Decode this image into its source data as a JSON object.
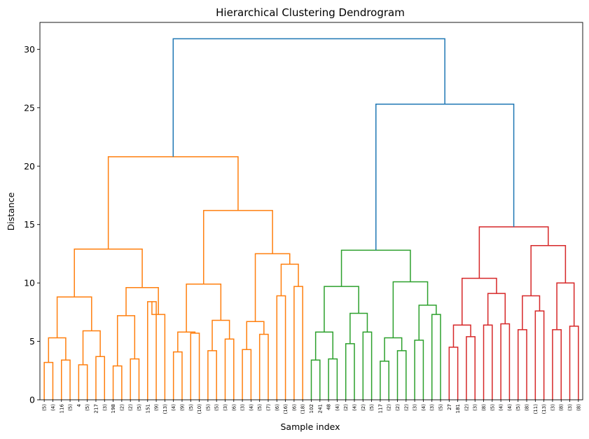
{
  "chart_data": {
    "type": "dendrogram",
    "title": "Hierarchical Clustering Dendrogram",
    "xlabel": "Sample index",
    "ylabel": "Distance",
    "ylim": [
      0,
      32.3
    ],
    "yticks": [
      0,
      5,
      10,
      15,
      20,
      25,
      30
    ],
    "grid": false,
    "colors": {
      "above_threshold": "#1f77b4",
      "cluster_1": "#ff7f0e",
      "cluster_2": "#2ca02c",
      "cluster_3": "#d62728"
    },
    "leaves": [
      "(5)",
      "(4)",
      "116",
      "(5)",
      "4",
      "(5)",
      "217",
      "(3)",
      "198",
      "(2)",
      "(2)",
      "(5)",
      "151",
      "(9)",
      "(13)",
      "(4)",
      "(9)",
      "(5)",
      "(10)",
      "(5)",
      "(5)",
      "(3)",
      "(6)",
      "(3)",
      "(4)",
      "(5)",
      "(7)",
      "(6)",
      "(16)",
      "(6)",
      "(18)",
      "102",
      "241",
      "48",
      "(4)",
      "(2)",
      "(4)",
      "(2)",
      "(5)",
      "117",
      "(2)",
      "(2)",
      "(2)",
      "(3)",
      "(4)",
      "(3)",
      "(5)",
      "27",
      "181",
      "(2)",
      "(3)",
      "(8)",
      "(5)",
      "(4)",
      "(4)",
      "(5)",
      "(8)",
      "(11)",
      "(13)",
      "(3)",
      "(8)",
      "(3)",
      "(8)"
    ],
    "merges": [
      {
        "a": "L0",
        "b": "L1",
        "h": 3.2,
        "c": "cluster_1"
      },
      {
        "a": "L2",
        "b": "L3",
        "h": 3.4,
        "c": "cluster_1"
      },
      {
        "a": "M0",
        "b": "M1",
        "h": 5.3,
        "c": "cluster_1"
      },
      {
        "a": "L4",
        "b": "L5",
        "h": 3.0,
        "c": "cluster_1"
      },
      {
        "a": "L6",
        "b": "L7",
        "h": 3.7,
        "c": "cluster_1"
      },
      {
        "a": "M3",
        "b": "M4",
        "h": 5.9,
        "c": "cluster_1"
      },
      {
        "a": "M2",
        "b": "M5",
        "h": 8.8,
        "c": "cluster_1"
      },
      {
        "a": "L8",
        "b": "L9",
        "h": 2.9,
        "c": "cluster_1"
      },
      {
        "a": "L10",
        "b": "L11",
        "h": 3.5,
        "c": "cluster_1"
      },
      {
        "a": "M7",
        "b": "M8",
        "h": 7.2,
        "c": "cluster_1"
      },
      {
        "a": "L12",
        "b": "L13",
        "h": 8.4,
        "c": "cluster_1"
      },
      {
        "a": "M10",
        "b": "L14",
        "h": 7.3,
        "c": "cluster_1"
      },
      {
        "a": "M9",
        "b": "M11",
        "h": 9.6,
        "c": "cluster_1"
      },
      {
        "a": "M6",
        "b": "M12",
        "h": 12.9,
        "c": "cluster_1"
      },
      {
        "a": "L15",
        "b": "L16",
        "h": 4.1,
        "c": "cluster_1"
      },
      {
        "a": "L17",
        "b": "L18",
        "h": 5.7,
        "c": "cluster_1"
      },
      {
        "a": "M14",
        "b": "M15",
        "h": 5.8,
        "c": "cluster_1"
      },
      {
        "a": "L19",
        "b": "L20",
        "h": 4.2,
        "c": "cluster_1"
      },
      {
        "a": "L21",
        "b": "L22",
        "h": 5.2,
        "c": "cluster_1"
      },
      {
        "a": "M17",
        "b": "M18",
        "h": 6.8,
        "c": "cluster_1"
      },
      {
        "a": "M16",
        "b": "M19",
        "h": 9.9,
        "c": "cluster_1"
      },
      {
        "a": "L23",
        "b": "L24",
        "h": 4.3,
        "c": "cluster_1"
      },
      {
        "a": "L25",
        "b": "L26",
        "h": 5.6,
        "c": "cluster_1"
      },
      {
        "a": "M21",
        "b": "M22",
        "h": 6.7,
        "c": "cluster_1"
      },
      {
        "a": "L27",
        "b": "L28",
        "h": 8.9,
        "c": "cluster_1"
      },
      {
        "a": "L29",
        "b": "L30",
        "h": 9.7,
        "c": "cluster_1"
      },
      {
        "a": "M24",
        "b": "M25",
        "h": 11.6,
        "c": "cluster_1"
      },
      {
        "a": "M23",
        "b": "M26",
        "h": 12.5,
        "c": "cluster_1"
      },
      {
        "a": "M20",
        "b": "M27",
        "h": 16.2,
        "c": "cluster_1"
      },
      {
        "a": "M13",
        "b": "M28",
        "h": 20.8,
        "c": "cluster_1"
      },
      {
        "a": "L31",
        "b": "L32",
        "h": 3.4,
        "c": "cluster_2"
      },
      {
        "a": "L33",
        "b": "L34",
        "h": 3.5,
        "c": "cluster_2"
      },
      {
        "a": "M30",
        "b": "M31",
        "h": 5.8,
        "c": "cluster_2"
      },
      {
        "a": "L35",
        "b": "L36",
        "h": 4.8,
        "c": "cluster_2"
      },
      {
        "a": "L37",
        "b": "L38",
        "h": 5.8,
        "c": "cluster_2"
      },
      {
        "a": "M33",
        "b": "M34",
        "h": 7.4,
        "c": "cluster_2"
      },
      {
        "a": "M32",
        "b": "M35",
        "h": 9.7,
        "c": "cluster_2"
      },
      {
        "a": "L39",
        "b": "L40",
        "h": 3.3,
        "c": "cluster_2"
      },
      {
        "a": "L41",
        "b": "L42",
        "h": 4.2,
        "c": "cluster_2"
      },
      {
        "a": "M37",
        "b": "M38",
        "h": 5.3,
        "c": "cluster_2"
      },
      {
        "a": "L43",
        "b": "L44",
        "h": 5.1,
        "c": "cluster_2"
      },
      {
        "a": "L45",
        "b": "L46",
        "h": 7.3,
        "c": "cluster_2"
      },
      {
        "a": "M40",
        "b": "M41",
        "h": 8.1,
        "c": "cluster_2"
      },
      {
        "a": "M39",
        "b": "M42",
        "h": 10.1,
        "c": "cluster_2"
      },
      {
        "a": "M36",
        "b": "M43",
        "h": 12.8,
        "c": "cluster_2"
      },
      {
        "a": "L47",
        "b": "L48",
        "h": 4.5,
        "c": "cluster_3"
      },
      {
        "a": "L49",
        "b": "L50",
        "h": 5.4,
        "c": "cluster_3"
      },
      {
        "a": "M45",
        "b": "M46",
        "h": 6.4,
        "c": "cluster_3"
      },
      {
        "a": "L51",
        "b": "L52",
        "h": 6.4,
        "c": "cluster_3"
      },
      {
        "a": "L53",
        "b": "L54",
        "h": 6.5,
        "c": "cluster_3"
      },
      {
        "a": "M48",
        "b": "M49",
        "h": 9.1,
        "c": "cluster_3"
      },
      {
        "a": "M47",
        "b": "M50",
        "h": 10.4,
        "c": "cluster_3"
      },
      {
        "a": "L55",
        "b": "L56",
        "h": 6.0,
        "c": "cluster_3"
      },
      {
        "a": "L57",
        "b": "L58",
        "h": 7.6,
        "c": "cluster_3"
      },
      {
        "a": "M52",
        "b": "M53",
        "h": 8.9,
        "c": "cluster_3"
      },
      {
        "a": "L59",
        "b": "L60",
        "h": 6.0,
        "c": "cluster_3"
      },
      {
        "a": "L61",
        "b": "L62",
        "h": 6.3,
        "c": "cluster_3"
      },
      {
        "a": "M55",
        "b": "M56",
        "h": 10.0,
        "c": "cluster_3"
      },
      {
        "a": "M54",
        "b": "M57",
        "h": 13.2,
        "c": "cluster_3"
      },
      {
        "a": "M51",
        "b": "M58",
        "h": 14.8,
        "c": "cluster_3"
      },
      {
        "a": "M44",
        "b": "M59",
        "h": 25.3,
        "c": "above_threshold"
      },
      {
        "a": "M29",
        "b": "M60",
        "h": 30.9,
        "c": "above_threshold"
      }
    ]
  }
}
